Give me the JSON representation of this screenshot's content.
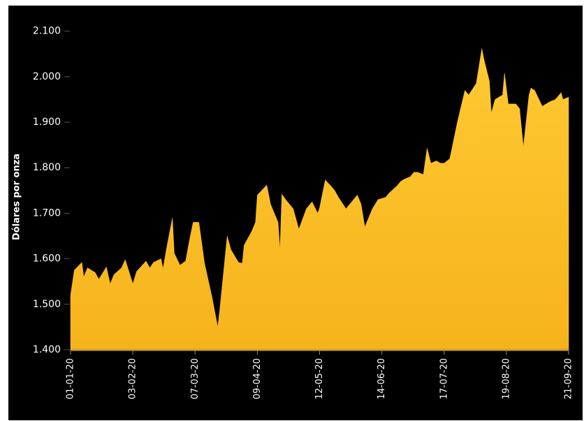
{
  "chart_data": {
    "type": "area",
    "y_label": "Dólares por onza",
    "color": "#f9b924",
    "x": [
      "2020-01-01",
      "2020-01-03",
      "2020-01-07",
      "2020-01-08",
      "2020-01-10",
      "2020-01-14",
      "2020-01-16",
      "2020-01-20",
      "2020-01-22",
      "2020-01-24",
      "2020-01-28",
      "2020-01-30",
      "2020-02-03",
      "2020-02-05",
      "2020-02-10",
      "2020-02-12",
      "2020-02-14",
      "2020-02-18",
      "2020-02-19",
      "2020-02-21",
      "2020-02-24",
      "2020-02-25",
      "2020-02-28",
      "2020-03-02",
      "2020-03-04",
      "2020-03-06",
      "2020-03-09",
      "2020-03-12",
      "2020-03-16",
      "2020-03-19",
      "2020-03-20",
      "2020-03-24",
      "2020-03-26",
      "2020-03-30",
      "2020-04-01",
      "2020-04-02",
      "2020-04-06",
      "2020-04-08",
      "2020-04-09",
      "2020-04-14",
      "2020-04-16",
      "2020-04-20",
      "2020-04-21",
      "2020-04-22",
      "2020-04-24",
      "2020-04-28",
      "2020-05-01",
      "2020-05-05",
      "2020-05-08",
      "2020-05-11",
      "2020-05-12",
      "2020-05-15",
      "2020-05-18",
      "2020-05-20",
      "2020-05-22",
      "2020-05-26",
      "2020-05-28",
      "2020-06-01",
      "2020-06-03",
      "2020-06-05",
      "2020-06-09",
      "2020-06-12",
      "2020-06-16",
      "2020-06-18",
      "2020-06-22",
      "2020-06-24",
      "2020-06-26",
      "2020-06-29",
      "2020-07-01",
      "2020-07-03",
      "2020-07-06",
      "2020-07-08",
      "2020-07-10",
      "2020-07-13",
      "2020-07-15",
      "2020-07-17",
      "2020-07-20",
      "2020-07-22",
      "2020-07-24",
      "2020-07-28",
      "2020-07-30",
      "2020-08-03",
      "2020-08-06",
      "2020-08-07",
      "2020-08-10",
      "2020-08-11",
      "2020-08-13",
      "2020-08-17",
      "2020-08-18",
      "2020-08-20",
      "2020-08-24",
      "2020-08-26",
      "2020-08-28",
      "2020-08-31",
      "2020-09-01",
      "2020-09-03",
      "2020-09-07",
      "2020-09-09",
      "2020-09-11",
      "2020-09-14",
      "2020-09-16",
      "2020-09-17",
      "2020-09-18",
      "2020-09-21"
    ],
    "values": [
      1520,
      1575,
      1592,
      1560,
      1580,
      1570,
      1555,
      1582,
      1545,
      1565,
      1580,
      1598,
      1545,
      1572,
      1595,
      1580,
      1592,
      1600,
      1578,
      1625,
      1690,
      1612,
      1586,
      1595,
      1640,
      1680,
      1680,
      1590,
      1515,
      1450,
      1485,
      1650,
      1620,
      1592,
      1590,
      1630,
      1660,
      1680,
      1740,
      1762,
      1720,
      1680,
      1620,
      1742,
      1730,
      1710,
      1665,
      1710,
      1725,
      1700,
      1712,
      1773,
      1760,
      1750,
      1735,
      1710,
      1720,
      1740,
      1720,
      1670,
      1710,
      1730,
      1735,
      1745,
      1760,
      1770,
      1775,
      1780,
      1790,
      1790,
      1785,
      1843,
      1810,
      1815,
      1810,
      1810,
      1820,
      1860,
      1900,
      1970,
      1960,
      1985,
      2062,
      2040,
      1990,
      1920,
      1950,
      1960,
      2008,
      1940,
      1940,
      1930,
      1846,
      1960,
      1975,
      1970,
      1935,
      1940,
      1945,
      1950,
      1960,
      1965,
      1950,
      1955
    ],
    "xlim": [
      "2020-01-01",
      "2020-09-21"
    ],
    "xticks": [
      {
        "value": "2020-01-01",
        "label": "01-01-20"
      },
      {
        "value": "2020-02-03",
        "label": "03-02-20"
      },
      {
        "value": "2020-03-07",
        "label": "07-03-20"
      },
      {
        "value": "2020-04-09",
        "label": "09-04-20"
      },
      {
        "value": "2020-05-12",
        "label": "12-05-20"
      },
      {
        "value": "2020-06-14",
        "label": "14-06-20"
      },
      {
        "value": "2020-07-17",
        "label": "17-07-20"
      },
      {
        "value": "2020-08-19",
        "label": "19-08-20"
      },
      {
        "value": "2020-09-21",
        "label": "21-09-20"
      }
    ],
    "ylim": [
      1400,
      2150
    ],
    "yticks": [
      {
        "value": 1400,
        "label": "1.400"
      },
      {
        "value": 1500,
        "label": "1.500"
      },
      {
        "value": 1600,
        "label": "1.600"
      },
      {
        "value": 1700,
        "label": "1.700"
      },
      {
        "value": 1800,
        "label": "1.800"
      },
      {
        "value": 1900,
        "label": "1.900"
      },
      {
        "value": 2000,
        "label": "2.000"
      },
      {
        "value": 2100,
        "label": "2.100"
      }
    ]
  }
}
